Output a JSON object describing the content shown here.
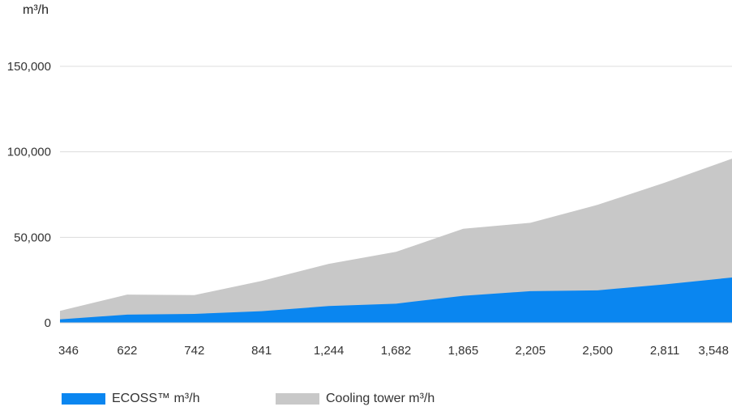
{
  "chart_data": {
    "type": "area",
    "unit_label": "m³/h",
    "categories": [
      "346",
      "622",
      "742",
      "841",
      "1,244",
      "1,682",
      "1,865",
      "2,205",
      "2,500",
      "2,811",
      "3,548"
    ],
    "series": [
      {
        "name": "Cooling tower m³/h",
        "color": "#c8c8c8",
        "values": [
          7000,
          16500,
          16200,
          24500,
          34500,
          41500,
          55000,
          58500,
          69000,
          82000,
          96000
        ]
      },
      {
        "name": "ECOSS™ m³/h",
        "color": "#0a86f0",
        "values": [
          2000,
          4800,
          5200,
          6800,
          9800,
          11200,
          15800,
          18500,
          19000,
          22500,
          26500
        ]
      }
    ],
    "yticks": [
      "0",
      "50,000",
      "100,000",
      "150,000"
    ],
    "ylim": [
      0,
      150000
    ],
    "grid": true,
    "legend_position": "bottom"
  }
}
